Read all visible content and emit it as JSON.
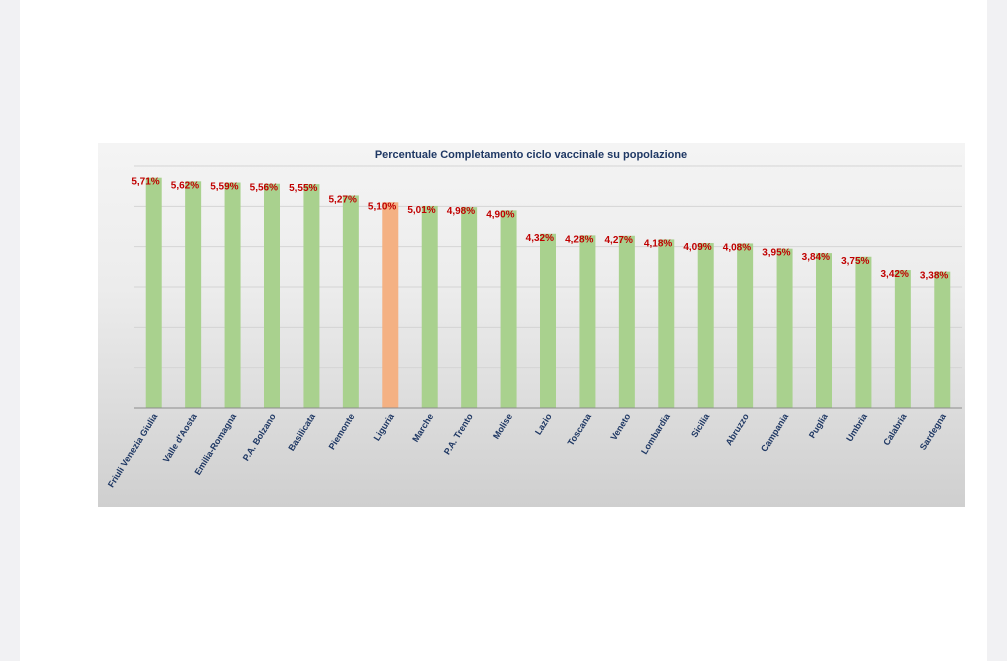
{
  "chart_data": {
    "type": "bar",
    "title": "Percentuale Completamento ciclo vaccinale su popolazione",
    "xlabel": "",
    "ylabel": "",
    "ylim": [
      0,
      6
    ],
    "grid": true,
    "categories": [
      "Friuli Venezia Giulia",
      "Valle d'Aosta",
      "Emilia-Romagna",
      "P.A. Bolzano",
      "Basilicata",
      "Piemonte",
      "Liguria",
      "Marche",
      "P.A. Trento",
      "Molise",
      "Lazio",
      "Toscana",
      "Veneto",
      "Lombardia",
      "Sicilia",
      "Abruzzo",
      "Campania",
      "Puglia",
      "Umbria",
      "Calabria",
      "Sardegna"
    ],
    "values": [
      5.71,
      5.62,
      5.59,
      5.56,
      5.55,
      5.27,
      5.1,
      5.01,
      4.98,
      4.9,
      4.32,
      4.28,
      4.27,
      4.18,
      4.09,
      4.08,
      3.95,
      3.84,
      3.75,
      3.42,
      3.38
    ],
    "value_labels": [
      "5,71%",
      "5,62%",
      "5,59%",
      "5,56%",
      "5,55%",
      "5,27%",
      "5,10%",
      "5,01%",
      "4,98%",
      "4,90%",
      "4,32%",
      "4,28%",
      "4,27%",
      "4,18%",
      "4,09%",
      "4,08%",
      "3,95%",
      "3,84%",
      "3,75%",
      "3,42%",
      "3,38%"
    ],
    "highlight_category": "Liguria",
    "colors": {
      "bar": "#a9d18e",
      "highlight_bar": "#f4b183",
      "data_label": "#c00000",
      "title": "#1f3864",
      "tick_label": "#1f3864",
      "gridline": "#d4d4d4",
      "axis": "#8c8c8c"
    }
  }
}
